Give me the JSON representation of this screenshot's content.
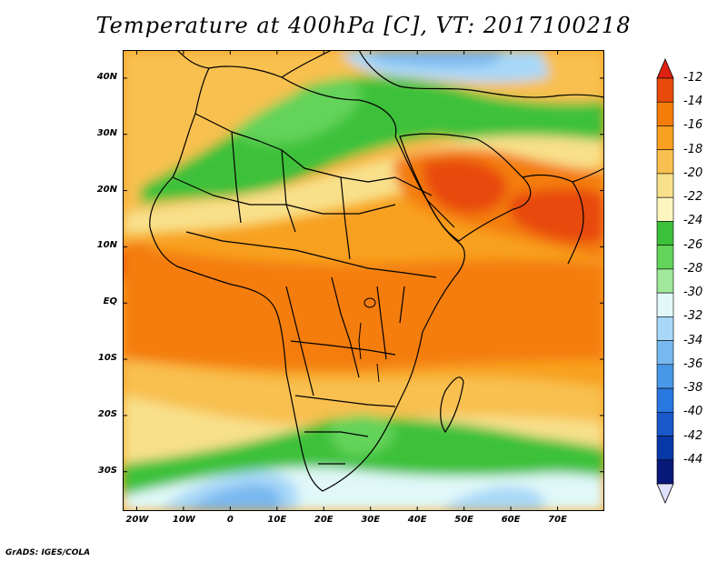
{
  "title": "Temperature at 400hPa [C], VT: 2017100218",
  "credit": "GrADS: IGES/COLA",
  "map": {
    "lon_range": [
      -23,
      80
    ],
    "lat_range": [
      -37,
      45
    ],
    "x_ticks": [
      {
        "value": -20,
        "label": "20W"
      },
      {
        "value": -10,
        "label": "10W"
      },
      {
        "value": 0,
        "label": "0"
      },
      {
        "value": 10,
        "label": "10E"
      },
      {
        "value": 20,
        "label": "20E"
      },
      {
        "value": 30,
        "label": "30E"
      },
      {
        "value": 40,
        "label": "40E"
      },
      {
        "value": 50,
        "label": "50E"
      },
      {
        "value": 60,
        "label": "60E"
      },
      {
        "value": 70,
        "label": "70E"
      }
    ],
    "y_ticks": [
      {
        "value": 40,
        "label": "40N"
      },
      {
        "value": 30,
        "label": "30N"
      },
      {
        "value": 20,
        "label": "20N"
      },
      {
        "value": 10,
        "label": "10N"
      },
      {
        "value": 0,
        "label": "EQ"
      },
      {
        "value": -10,
        "label": "10S"
      },
      {
        "value": -20,
        "label": "20S"
      },
      {
        "value": -30,
        "label": "30S"
      }
    ]
  },
  "colorbar": {
    "levels": [
      "-12",
      "-14",
      "-16",
      "-18",
      "-20",
      "-22",
      "-24",
      "-26",
      "-28",
      "-30",
      "-32",
      "-34",
      "-36",
      "-38",
      "-40",
      "-42",
      "-44"
    ],
    "colors": [
      "#e84a0c",
      "#f47d0a",
      "#f8a020",
      "#f8c050",
      "#f8e08a",
      "#fcf5c0",
      "#3cc13a",
      "#64d35a",
      "#a0e89a",
      "#e0f8f8",
      "#a8d8f8",
      "#78b8f0",
      "#4898e8",
      "#2878e0",
      "#1858c8",
      "#0838a8",
      "#081878"
    ],
    "top_arrow_color": "#e02010",
    "bottom_arrow_color": "#e0e0ff"
  }
}
